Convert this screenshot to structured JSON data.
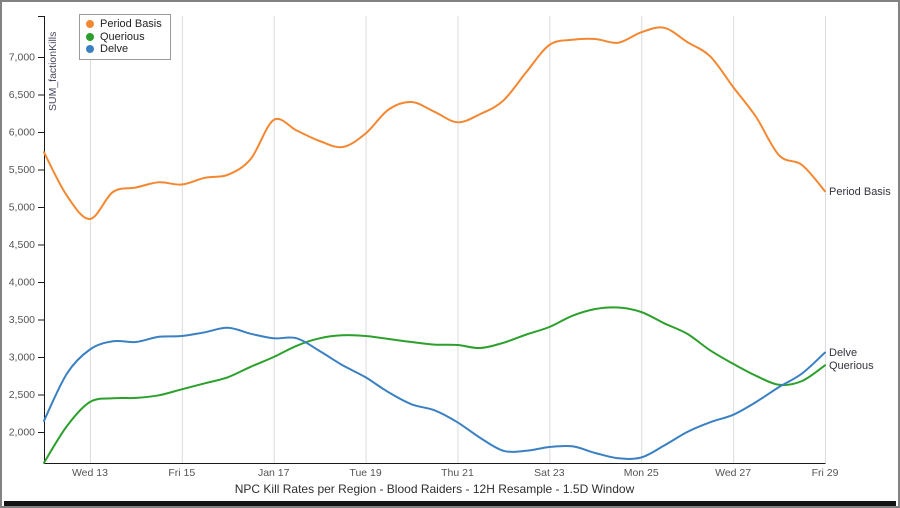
{
  "chart_data": {
    "type": "line",
    "title": "NPC Kill Rates per Region - Blood Raiders - 12H Resample - 1.5D Window",
    "ylabel": "SUM_factionKills",
    "grid": "vertical-only",
    "legend_position": "top-left",
    "n_points": 35,
    "x_step": "12 hours",
    "x_ticks": [
      {
        "index": 2,
        "label": "Wed 13"
      },
      {
        "index": 6,
        "label": "Fri 15"
      },
      {
        "index": 10,
        "label": "Jan 17"
      },
      {
        "index": 14,
        "label": "Tue 19"
      },
      {
        "index": 18,
        "label": "Thu 21"
      },
      {
        "index": 22,
        "label": "Sat 23"
      },
      {
        "index": 26,
        "label": "Mon 25"
      },
      {
        "index": 30,
        "label": "Wed 27"
      },
      {
        "index": 34,
        "label": "Fri 29"
      }
    ],
    "y_ticks": [
      {
        "value": 2000,
        "label": "2,000"
      },
      {
        "value": 2500,
        "label": "2,500"
      },
      {
        "value": 3000,
        "label": "3,000"
      },
      {
        "value": 3500,
        "label": "3,500"
      },
      {
        "value": 4000,
        "label": "4,000"
      },
      {
        "value": 4500,
        "label": "4,500"
      },
      {
        "value": 5000,
        "label": "5,000"
      },
      {
        "value": 5500,
        "label": "5,500"
      },
      {
        "value": 6000,
        "label": "6,000"
      },
      {
        "value": 6500,
        "label": "6,500"
      },
      {
        "value": 7000,
        "label": "7,000"
      }
    ],
    "ylim": [
      1550,
      7550
    ],
    "series": [
      {
        "name": "Period Basis",
        "color": "#f48832",
        "values": [
          5730,
          5150,
          4840,
          5200,
          5260,
          5330,
          5300,
          5390,
          5430,
          5640,
          6160,
          6020,
          5880,
          5800,
          5980,
          6300,
          6400,
          6270,
          6130,
          6240,
          6420,
          6800,
          7160,
          7230,
          7240,
          7190,
          7330,
          7390,
          7200,
          7010,
          6600,
          6200,
          5690,
          5560,
          5210
        ]
      },
      {
        "name": "Querious",
        "color": "#2ca02c",
        "values": [
          1590,
          2080,
          2400,
          2450,
          2455,
          2490,
          2570,
          2650,
          2730,
          2870,
          3000,
          3150,
          3250,
          3290,
          3280,
          3240,
          3200,
          3165,
          3160,
          3120,
          3190,
          3300,
          3400,
          3550,
          3640,
          3660,
          3600,
          3450,
          3310,
          3090,
          2910,
          2750,
          2630,
          2680,
          2890
        ]
      },
      {
        "name": "Delve",
        "color": "#3a80c2",
        "values": [
          2150,
          2780,
          3100,
          3210,
          3200,
          3270,
          3280,
          3330,
          3390,
          3310,
          3250,
          3250,
          3080,
          2890,
          2730,
          2530,
          2370,
          2290,
          2130,
          1920,
          1750,
          1750,
          1800,
          1810,
          1720,
          1650,
          1660,
          1820,
          2000,
          2130,
          2230,
          2400,
          2600,
          2780,
          3060
        ]
      }
    ],
    "colors": {
      "grid": "#dcdcdc",
      "axis": "#1a1a1a",
      "tick_text": "#545454",
      "title_text": "#2e2e2e"
    }
  }
}
